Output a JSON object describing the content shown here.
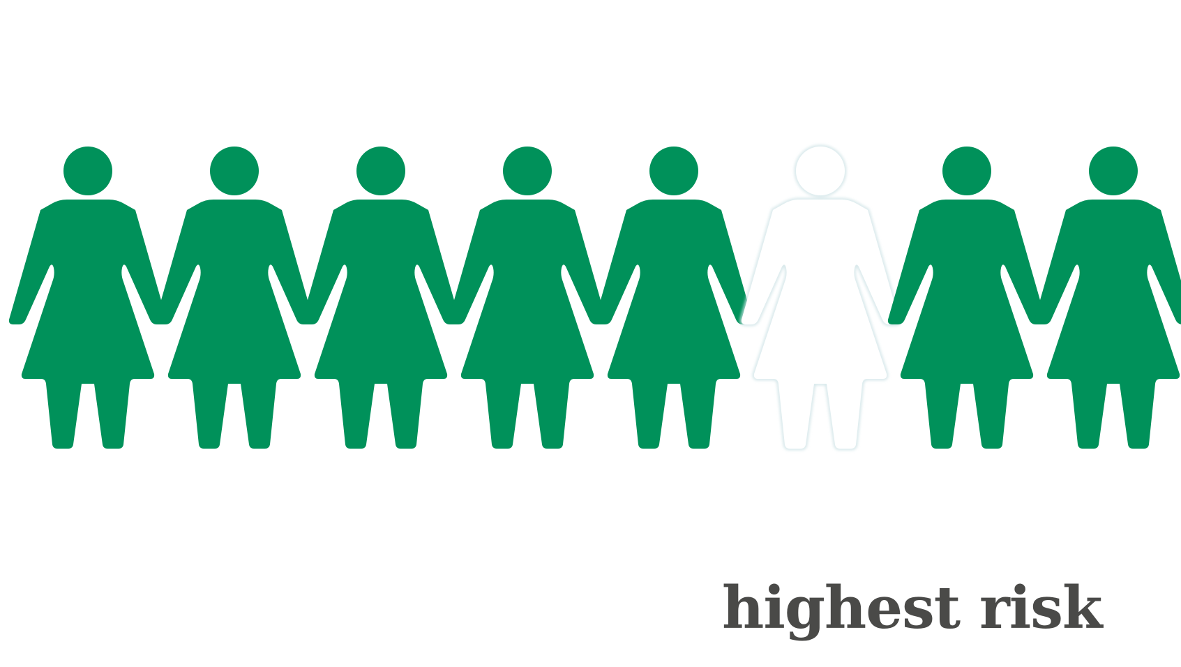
{
  "figures": {
    "count": 8,
    "highlighted_index": 5,
    "icon": "woman-icon",
    "colors": {
      "filled": "#00915a",
      "highlight_fill": "#ffffff",
      "highlight_stroke": "#cfe3e6"
    }
  },
  "caption": "highest risk"
}
